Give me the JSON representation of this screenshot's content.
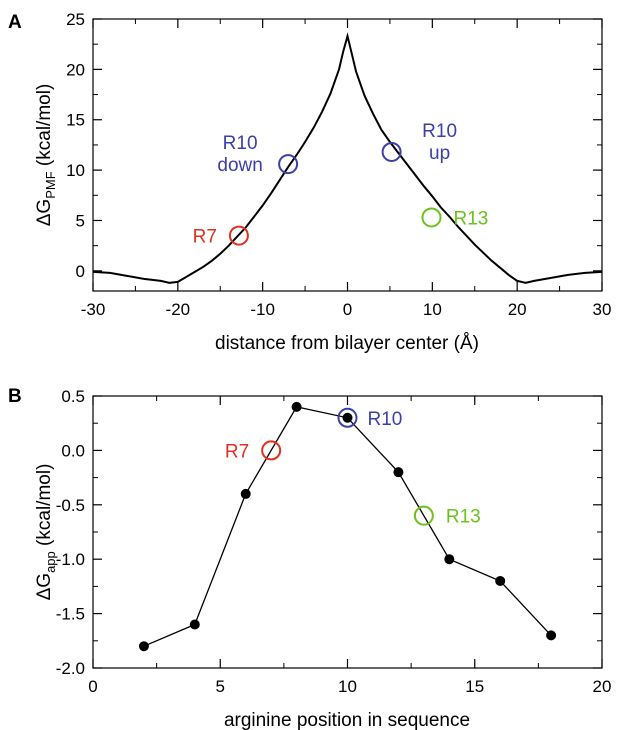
{
  "colors": {
    "red": "#e0301e",
    "blue": "#3b3fa6",
    "green": "#6cc11c",
    "black": "#000000"
  },
  "chart_data": [
    {
      "panel_label": "A",
      "type": "line",
      "xlabel": "distance from bilayer center (Å)",
      "ylabel_main": "ΔG",
      "ylabel_sub": "PMF",
      "ylabel_unit": " (kcal/mol)",
      "xlim": [
        -30,
        30
      ],
      "ylim": [
        -2,
        25
      ],
      "xticks": [
        -30,
        -20,
        -10,
        0,
        10,
        20,
        30
      ],
      "xtick_labels": [
        "-30",
        "-20",
        "-10",
        "0",
        "10",
        "20",
        "30"
      ],
      "yticks": [
        0,
        5,
        10,
        15,
        20,
        25
      ],
      "ytick_labels": [
        "0",
        "5",
        "10",
        "15",
        "20",
        "25"
      ],
      "series": [
        {
          "x": [
            -30,
            -28,
            -26,
            -24,
            -22,
            -21,
            -20,
            -19,
            -18,
            -17,
            -16,
            -15,
            -14,
            -13,
            -12,
            -11,
            -10,
            -9,
            -8,
            -7,
            -6,
            -5,
            -4,
            -3,
            -2,
            -1,
            -0.5,
            0,
            0.5,
            1,
            2,
            3,
            4,
            5,
            6,
            7,
            8,
            9,
            10,
            11,
            12,
            13,
            14,
            15,
            16,
            17,
            18,
            19,
            20,
            21,
            22,
            24,
            26,
            28,
            30
          ],
          "y": [
            -0.1,
            -0.2,
            -0.5,
            -0.8,
            -1.0,
            -1.2,
            -1.1,
            -0.6,
            -0.1,
            0.4,
            1.0,
            1.7,
            2.5,
            3.4,
            4.3,
            5.4,
            6.5,
            7.7,
            9.0,
            10.3,
            11.5,
            12.8,
            14.2,
            15.8,
            17.6,
            20.0,
            21.8,
            23.3,
            21.6,
            19.8,
            17.4,
            15.6,
            14.0,
            12.8,
            11.7,
            10.6,
            9.5,
            8.4,
            7.4,
            6.3,
            5.4,
            4.4,
            3.5,
            2.6,
            1.8,
            1.0,
            0.3,
            -0.4,
            -1.0,
            -1.2,
            -1.0,
            -0.7,
            -0.4,
            -0.2,
            -0.1
          ]
        }
      ],
      "points": [
        {
          "label": "R7",
          "label_lines": [
            "R7"
          ],
          "x": -12.8,
          "y": 3.5,
          "color": "#e0301e"
        },
        {
          "label": "R10 down",
          "label_lines": [
            "R10",
            "down"
          ],
          "x": -7.0,
          "y": 10.6,
          "color": "#3b3fa6"
        },
        {
          "label": "R10 up",
          "label_lines": [
            "R10",
            "up"
          ],
          "x": 5.2,
          "y": 11.8,
          "color": "#3b3fa6"
        },
        {
          "label": "R13",
          "label_lines": [
            "R13"
          ],
          "x": 9.9,
          "y": 5.3,
          "color": "#6cc11c"
        }
      ]
    },
    {
      "panel_label": "B",
      "type": "line",
      "xlabel": "arginine position in sequence",
      "ylabel_main": "ΔG",
      "ylabel_sub": "app",
      "ylabel_unit": " (kcal/mol)",
      "xlim": [
        0,
        20
      ],
      "ylim": [
        -2.0,
        0.5
      ],
      "xticks": [
        0,
        5,
        10,
        15,
        20
      ],
      "xtick_labels": [
        "0",
        "5",
        "10",
        "15",
        "20"
      ],
      "yticks": [
        0.5,
        0.0,
        -0.5,
        -1.0,
        -1.5,
        -2.0
      ],
      "ytick_labels": [
        "0.5",
        "0.0",
        "-0.5",
        "-1.0",
        "-1.5",
        "-2.0"
      ],
      "series": [
        {
          "x": [
            2,
            4,
            6,
            8,
            10,
            12,
            14,
            16,
            18
          ],
          "y": [
            -1.8,
            -1.6,
            -0.4,
            0.4,
            0.3,
            -0.2,
            -1.0,
            -1.2,
            -1.7
          ]
        }
      ],
      "points": [
        {
          "label": "R7",
          "label_lines": [
            "R7"
          ],
          "x": 7,
          "y": 0.0,
          "color": "#e0301e"
        },
        {
          "label": "R10",
          "label_lines": [
            "R10"
          ],
          "x": 10,
          "y": 0.3,
          "color": "#3b3fa6"
        },
        {
          "label": "R13",
          "label_lines": [
            "R13"
          ],
          "x": 13,
          "y": -0.6,
          "color": "#6cc11c"
        }
      ]
    }
  ]
}
